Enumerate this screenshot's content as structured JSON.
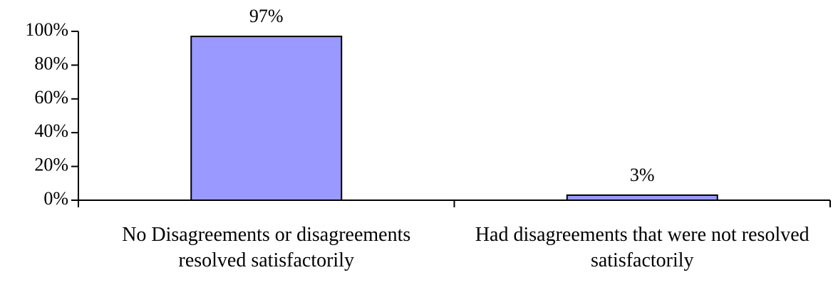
{
  "chart_data": {
    "type": "bar",
    "categories": [
      "No Disagreements or disagreements resolved satisfactorily",
      "Had disagreements that were not resolved satisfactorily"
    ],
    "values": [
      97,
      3
    ],
    "value_labels": [
      "97%",
      "3%"
    ],
    "color": "#9999ff",
    "ylim": [
      0,
      100
    ],
    "yticks": [
      {
        "value": 0,
        "label": "0%"
      },
      {
        "value": 20,
        "label": "20%"
      },
      {
        "value": 40,
        "label": "40%"
      },
      {
        "value": 60,
        "label": "60%"
      },
      {
        "value": 80,
        "label": "80%"
      },
      {
        "value": 100,
        "label": "100%"
      }
    ]
  }
}
